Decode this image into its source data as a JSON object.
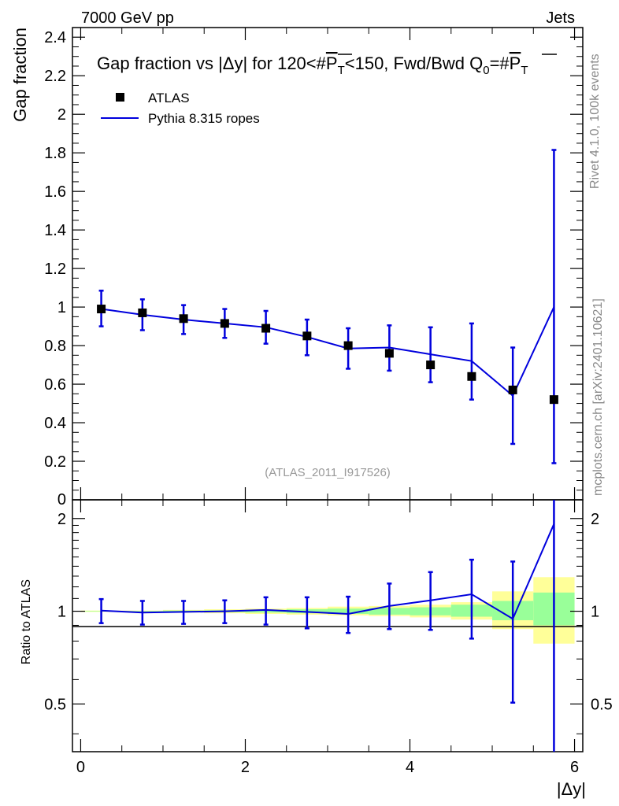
{
  "header": {
    "energy_label": "7000 GeV pp",
    "category_label": "Jets",
    "rivet_label": "Rivet 4.1.0,  100k events",
    "mcplots_label": "mcplots.cern.ch [arXiv:2401.10621]"
  },
  "chart_data": [
    {
      "type": "scatter",
      "title": "Gap fraction vs |Δy| for 120<#P̄T<150, Fwd/Bwd Q0=#P̄T",
      "ylabel": "Gap fraction",
      "xlabel": "|Δy|",
      "xlim": [
        -0.1,
        6.1
      ],
      "ylim": [
        0,
        2.45
      ],
      "yticks": [
        0.2,
        0.4,
        0.6,
        0.8,
        1,
        1.2,
        1.4,
        1.6,
        1.8,
        2,
        2.2,
        2.4
      ],
      "ytick_labels": [
        "0.2",
        "0.4",
        "0.6",
        "0.8",
        "1",
        "1.2",
        "1.4",
        "1.6",
        "1.8",
        "2",
        "2.2",
        "2.4"
      ],
      "yzero_label": "0",
      "watermark": "(ATLAS_2011_I917526)",
      "legend": {
        "position": "top-left",
        "entries": [
          {
            "name": "ATLAS",
            "marker": "square",
            "color": "#000000"
          },
          {
            "name": "Pythia 8.315 ropes",
            "marker": "line",
            "color": "#0000dd"
          }
        ]
      },
      "series": [
        {
          "name": "ATLAS",
          "color": "#000000",
          "x": [
            0.25,
            0.75,
            1.25,
            1.75,
            2.25,
            2.75,
            3.25,
            3.75,
            4.25,
            4.75,
            5.25,
            5.75
          ],
          "y": [
            0.99,
            0.97,
            0.94,
            0.915,
            0.89,
            0.85,
            0.8,
            0.76,
            0.7,
            0.64,
            0.57,
            0.52
          ]
        },
        {
          "name": "Pythia 8.315 ropes",
          "color": "#0000dd",
          "x": [
            0.25,
            0.75,
            1.25,
            1.75,
            2.25,
            2.75,
            3.25,
            3.75,
            4.25,
            4.75,
            5.25,
            5.75
          ],
          "y": [
            0.99,
            0.96,
            0.935,
            0.915,
            0.895,
            0.845,
            0.785,
            0.79,
            0.755,
            0.72,
            0.54,
            1.0
          ],
          "y_err_high": [
            1.085,
            1.04,
            1.01,
            0.99,
            0.98,
            0.935,
            0.89,
            0.905,
            0.895,
            0.915,
            0.79,
            1.815
          ],
          "y_err_low": [
            0.9,
            0.88,
            0.86,
            0.84,
            0.81,
            0.75,
            0.68,
            0.67,
            0.61,
            0.52,
            0.29,
            0.19
          ]
        }
      ]
    },
    {
      "type": "line",
      "ylabel": "Ratio to ATLAS",
      "xlabel": "|Δy|",
      "xlim": [
        -0.1,
        6.1
      ],
      "ylim": [
        0.35,
        2.3
      ],
      "yscale": "log",
      "yticks": [
        0.5,
        1,
        2
      ],
      "ytick_labels": [
        "0.5",
        "1",
        "2"
      ],
      "xticks": [
        0,
        2,
        4,
        6
      ],
      "xtick_labels": [
        "0",
        "2",
        "4",
        "6"
      ],
      "bands": {
        "x_edges": [
          0,
          0.5,
          1,
          1.5,
          2,
          2.5,
          3,
          3.5,
          4,
          4.5,
          5,
          5.5,
          6
        ],
        "yellow_low": [
          0.995,
          0.995,
          0.99,
          0.985,
          0.98,
          0.975,
          0.97,
          0.965,
          0.955,
          0.94,
          0.875,
          0.785
        ],
        "yellow_high": [
          1.005,
          1.005,
          1.01,
          1.015,
          1.02,
          1.025,
          1.035,
          1.04,
          1.05,
          1.07,
          1.16,
          1.29
        ],
        "green_low": [
          0.998,
          0.998,
          0.995,
          0.993,
          0.99,
          0.985,
          0.98,
          0.975,
          0.97,
          0.96,
          0.935,
          0.9
        ],
        "green_high": [
          1.002,
          1.002,
          1.005,
          1.007,
          1.01,
          1.015,
          1.02,
          1.025,
          1.03,
          1.05,
          1.08,
          1.15
        ],
        "yellow_color": "#ffff99",
        "green_color": "#99ff99"
      },
      "series": [
        {
          "name": "Pythia 8.315 ropes",
          "color": "#0000dd",
          "x": [
            0.25,
            0.75,
            1.25,
            1.75,
            2.25,
            2.75,
            3.25,
            3.75,
            4.25,
            4.75,
            5.25,
            5.75
          ],
          "y": [
            1.005,
            0.99,
            0.995,
            1.0,
            1.01,
            0.995,
            0.98,
            1.04,
            1.085,
            1.135,
            0.945,
            1.92
          ],
          "y_err_high": [
            1.095,
            1.08,
            1.08,
            1.085,
            1.11,
            1.11,
            1.115,
            1.23,
            1.34,
            1.47,
            1.45,
            2.5
          ],
          "y_err_low": [
            0.915,
            0.905,
            0.91,
            0.915,
            0.905,
            0.88,
            0.85,
            0.875,
            0.87,
            0.815,
            0.505,
            0.3
          ]
        }
      ]
    }
  ]
}
